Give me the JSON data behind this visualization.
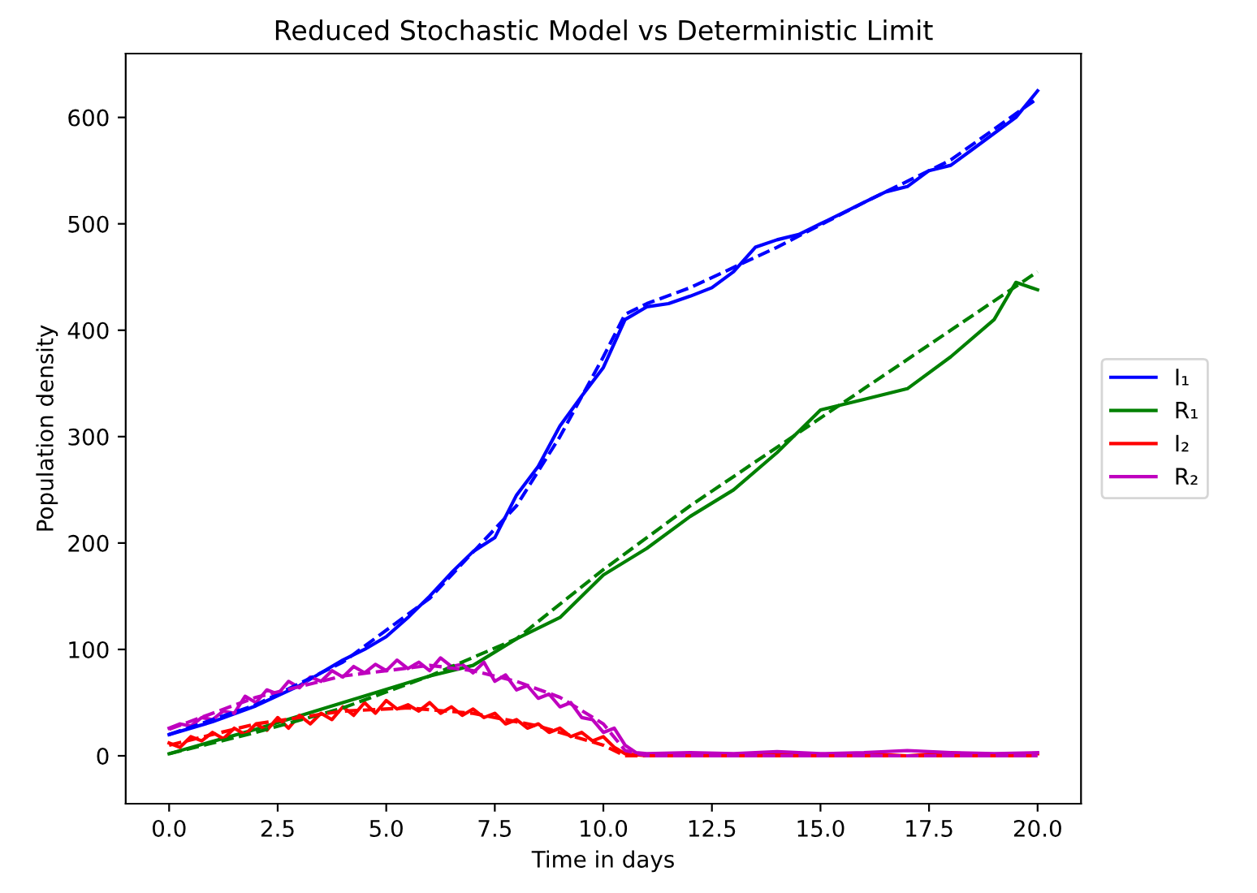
{
  "chart_data": {
    "type": "line",
    "title": "Reduced Stochastic Model vs Deterministic Limit",
    "xlabel": "Time in days",
    "ylabel": "Population density",
    "xlim": [
      -1,
      21
    ],
    "ylim": [
      -45,
      660
    ],
    "xticks": [
      {
        "value": 0,
        "label": "0.0"
      },
      2.5,
      {
        "value": 5,
        "label": "5.0"
      },
      7.5,
      {
        "value": 10,
        "label": "10.0"
      },
      12.5,
      {
        "value": 15,
        "label": "15.0"
      },
      17.5,
      {
        "value": 20,
        "label": "20.0"
      }
    ],
    "yticks": [
      0,
      100,
      200,
      300,
      400,
      500,
      600
    ],
    "grid": false,
    "legend": "right",
    "series": [
      {
        "name": "I₁",
        "color": "#0000ff",
        "line_style": "solid",
        "x": [
          0,
          1,
          2,
          3,
          4,
          4.5,
          5,
          5.5,
          6,
          6.5,
          7,
          7.5,
          8,
          8.5,
          9,
          9.5,
          10,
          10.5,
          11,
          11.5,
          12,
          12.5,
          13,
          13.5,
          14,
          14.5,
          15,
          15.5,
          16,
          16.5,
          17,
          17.5,
          18,
          18.5,
          19,
          19.5,
          20
        ],
        "values": [
          20,
          32,
          47,
          66,
          90,
          100,
          112,
          130,
          150,
          172,
          192,
          205,
          245,
          272,
          310,
          338,
          365,
          410,
          422,
          425,
          432,
          440,
          455,
          478,
          485,
          490,
          500,
          510,
          520,
          530,
          535,
          550,
          555,
          570,
          585,
          600,
          625
        ]
      },
      {
        "name": "R₁",
        "color": "#008000",
        "line_style": "solid",
        "x": [
          0,
          2,
          4,
          6,
          7,
          8,
          9,
          10,
          11,
          12,
          13,
          14,
          15,
          16,
          17,
          18,
          19,
          19.5,
          20
        ],
        "values": [
          2,
          25,
          50,
          75,
          85,
          110,
          130,
          170,
          195,
          225,
          250,
          285,
          325,
          335,
          345,
          375,
          410,
          445,
          438
        ]
      },
      {
        "name": "I₂",
        "color": "#ff0000",
        "line_style": "solid",
        "x": [
          0,
          0.25,
          0.5,
          0.75,
          1,
          1.25,
          1.5,
          1.75,
          2,
          2.25,
          2.5,
          2.75,
          3,
          3.25,
          3.5,
          3.75,
          4,
          4.25,
          4.5,
          4.75,
          5,
          5.25,
          5.5,
          5.75,
          6,
          6.25,
          6.5,
          6.75,
          7,
          7.25,
          7.5,
          7.75,
          8,
          8.25,
          8.5,
          8.75,
          9,
          9.25,
          9.5,
          9.75,
          10,
          10.25,
          10.5,
          11,
          12,
          13,
          14,
          15,
          16,
          17,
          18,
          19,
          20
        ],
        "values": [
          12,
          8,
          18,
          14,
          22,
          16,
          26,
          20,
          30,
          24,
          36,
          26,
          38,
          30,
          40,
          34,
          46,
          38,
          50,
          40,
          52,
          44,
          48,
          42,
          50,
          40,
          46,
          38,
          44,
          36,
          40,
          30,
          34,
          26,
          30,
          22,
          26,
          18,
          22,
          14,
          18,
          8,
          2,
          0,
          2,
          0,
          2,
          0,
          2,
          0,
          3,
          0,
          2
        ]
      },
      {
        "name": "R₂",
        "color": "#bf00bf",
        "line_style": "solid",
        "x": [
          0,
          0.25,
          0.5,
          0.75,
          1,
          1.25,
          1.5,
          1.75,
          2,
          2.25,
          2.5,
          2.75,
          3,
          3.25,
          3.5,
          3.75,
          4,
          4.25,
          4.5,
          4.75,
          5,
          5.25,
          5.5,
          5.75,
          6,
          6.25,
          6.5,
          6.75,
          7,
          7.25,
          7.5,
          7.75,
          8,
          8.25,
          8.5,
          8.75,
          9,
          9.25,
          9.5,
          9.75,
          10,
          10.25,
          10.5,
          10.75,
          11,
          12,
          13,
          14,
          15,
          16,
          17,
          18,
          19,
          20
        ],
        "values": [
          26,
          30,
          28,
          36,
          34,
          42,
          40,
          56,
          50,
          62,
          58,
          70,
          64,
          74,
          70,
          80,
          74,
          84,
          78,
          86,
          80,
          90,
          82,
          88,
          80,
          92,
          84,
          86,
          78,
          88,
          70,
          76,
          62,
          66,
          54,
          58,
          46,
          50,
          36,
          34,
          22,
          26,
          10,
          3,
          2,
          3,
          2,
          4,
          2,
          3,
          5,
          3,
          2,
          3
        ]
      },
      {
        "color": "#0000ff",
        "line_style": "dashed",
        "x": [
          0,
          2,
          4,
          6,
          8,
          9,
          10,
          10.5,
          11,
          12,
          14,
          16,
          18,
          20
        ],
        "values": [
          20,
          48,
          88,
          148,
          235,
          300,
          375,
          415,
          425,
          440,
          478,
          520,
          560,
          618
        ]
      },
      {
        "color": "#008000",
        "line_style": "dashed",
        "x": [
          0,
          2,
          4,
          6,
          8,
          10,
          12,
          14,
          16,
          18,
          20
        ],
        "values": [
          2,
          22,
          45,
          75,
          110,
          175,
          235,
          290,
          345,
          400,
          455
        ]
      },
      {
        "color": "#ff0000",
        "line_style": "dashed",
        "x": [
          0,
          2,
          4,
          5.5,
          7,
          8.5,
          10,
          10.5,
          20
        ],
        "values": [
          10,
          30,
          42,
          45,
          40,
          28,
          10,
          0,
          0
        ]
      },
      {
        "color": "#bf00bf",
        "line_style": "dashed",
        "x": [
          0,
          2,
          4,
          6,
          7,
          8,
          9,
          10,
          10.5,
          11,
          20
        ],
        "values": [
          25,
          55,
          75,
          85,
          80,
          70,
          55,
          30,
          5,
          0,
          0
        ]
      }
    ]
  }
}
